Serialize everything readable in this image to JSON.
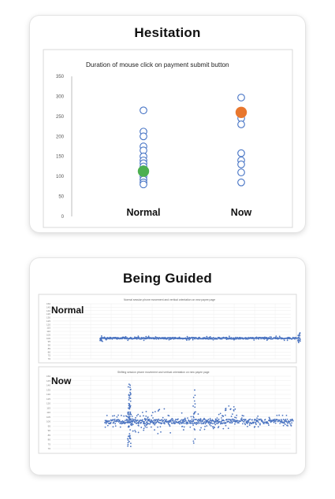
{
  "sections": [
    {
      "title": "Hesitation"
    },
    {
      "title": "Being Guided"
    }
  ],
  "chart_data": [
    {
      "type": "scatter",
      "title": "Duration of mouse click on payment submit button",
      "categories": [
        "Normal",
        "Now"
      ],
      "ylim": [
        0,
        350
      ],
      "yticks": [
        0,
        50,
        100,
        150,
        200,
        250,
        300,
        350
      ],
      "series": [
        {
          "values": [
            [
              0,
              265
            ],
            [
              0,
              212
            ],
            [
              0,
              200
            ],
            [
              0,
              175
            ],
            [
              0,
              165
            ],
            [
              0,
              150
            ],
            [
              0,
              140
            ],
            [
              0,
              133
            ],
            [
              0,
              125
            ],
            [
              0,
              118
            ],
            [
              0,
              110
            ],
            [
              0,
              100
            ],
            [
              0,
              92
            ],
            [
              0,
              85
            ],
            [
              0,
              80
            ],
            [
              1,
              297
            ],
            [
              1,
              245
            ],
            [
              1,
              230
            ],
            [
              1,
              158
            ],
            [
              1,
              140
            ],
            [
              1,
              130
            ],
            [
              1,
              110
            ],
            [
              1,
              85
            ]
          ],
          "style": "hollow",
          "color": "#4472c4"
        },
        {
          "values": [
            [
              0,
              113
            ]
          ],
          "style": "filled",
          "color": "#4caf50"
        },
        {
          "values": [
            [
              1,
              260
            ]
          ],
          "style": "filled",
          "color": "#e8772e"
        }
      ],
      "grid": false
    },
    {
      "type": "scatter",
      "panel_label": "Normal",
      "title": "Normal session phone movement and vertical orientation on new payee page",
      "ylim": [
        70,
        150
      ],
      "yticks": [
        70,
        75,
        80,
        85,
        90,
        95,
        100,
        105,
        110,
        115,
        120,
        125,
        130,
        135,
        140,
        145,
        150
      ],
      "color": "#4a73c0",
      "grid": true
    },
    {
      "type": "scatter",
      "panel_label": "Now",
      "title": "Shifting session phone movement and vertical orientation on new payee page",
      "ylim": [
        70,
        150
      ],
      "yticks": [
        70,
        75,
        80,
        85,
        90,
        95,
        100,
        105,
        110,
        115,
        120,
        125,
        130,
        135,
        140,
        145,
        150
      ],
      "color": "#4a73c0",
      "grid": true
    }
  ]
}
